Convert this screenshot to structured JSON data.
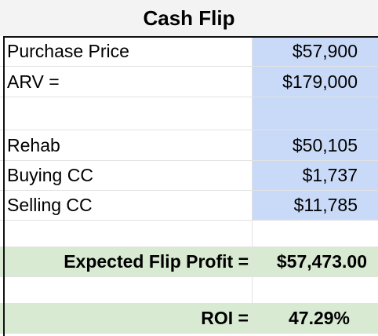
{
  "sheet": {
    "title": "Cash Flip",
    "rows": [
      {
        "label": "Purchase Price",
        "value": "$57,900"
      },
      {
        "label": "ARV =",
        "value": "$179,000"
      },
      {
        "label": "",
        "value": ""
      },
      {
        "label": "Rehab",
        "value": "$50,105"
      },
      {
        "label": "Buying CC",
        "value": "$1,737"
      },
      {
        "label": "Selling CC",
        "value": "$11,785"
      }
    ],
    "profit": {
      "label": "Expected Flip Profit =",
      "value": "$57,473.00"
    },
    "roi": {
      "label": "ROI =",
      "value": "47.29%"
    }
  },
  "colors": {
    "input_fill": "#c9daf8",
    "summary_fill": "#d9ead3",
    "title_fill": "#f3f3f3"
  }
}
